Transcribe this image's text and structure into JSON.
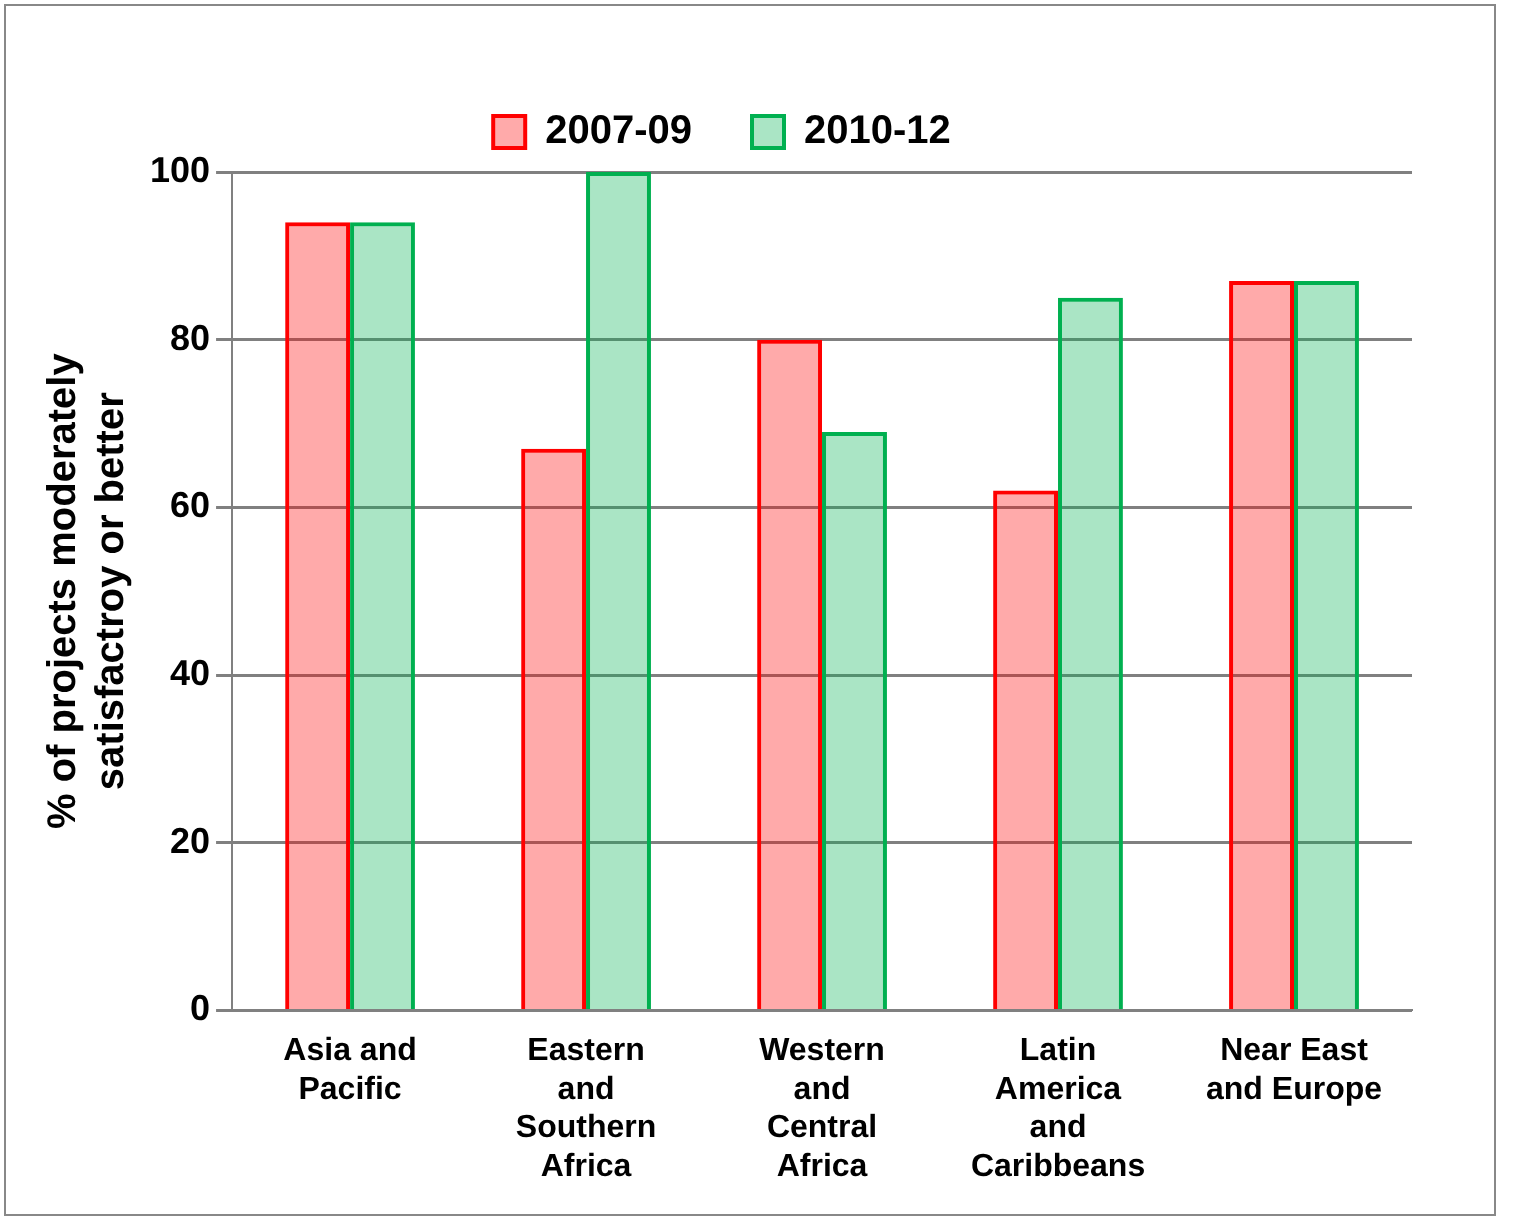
{
  "chart_data": {
    "type": "bar",
    "ylabel": "% of projects moderately satisfactroy or better",
    "categories": [
      "Asia and Pacific",
      "Eastern and Southern Africa",
      "Western and Central Africa",
      "Latin America and Caribbeans",
      "Near East and Europe"
    ],
    "series": [
      {
        "name": "2007-09",
        "color": "#ff0000",
        "values": [
          94,
          67,
          80,
          62,
          87
        ]
      },
      {
        "name": "2010-12",
        "color": "#00b050",
        "values": [
          94,
          100,
          69,
          85,
          87
        ]
      }
    ],
    "ylim": [
      0,
      100
    ],
    "yticks": [
      0,
      20,
      40,
      60,
      80,
      100
    ],
    "grid": "y",
    "legend": "top"
  }
}
